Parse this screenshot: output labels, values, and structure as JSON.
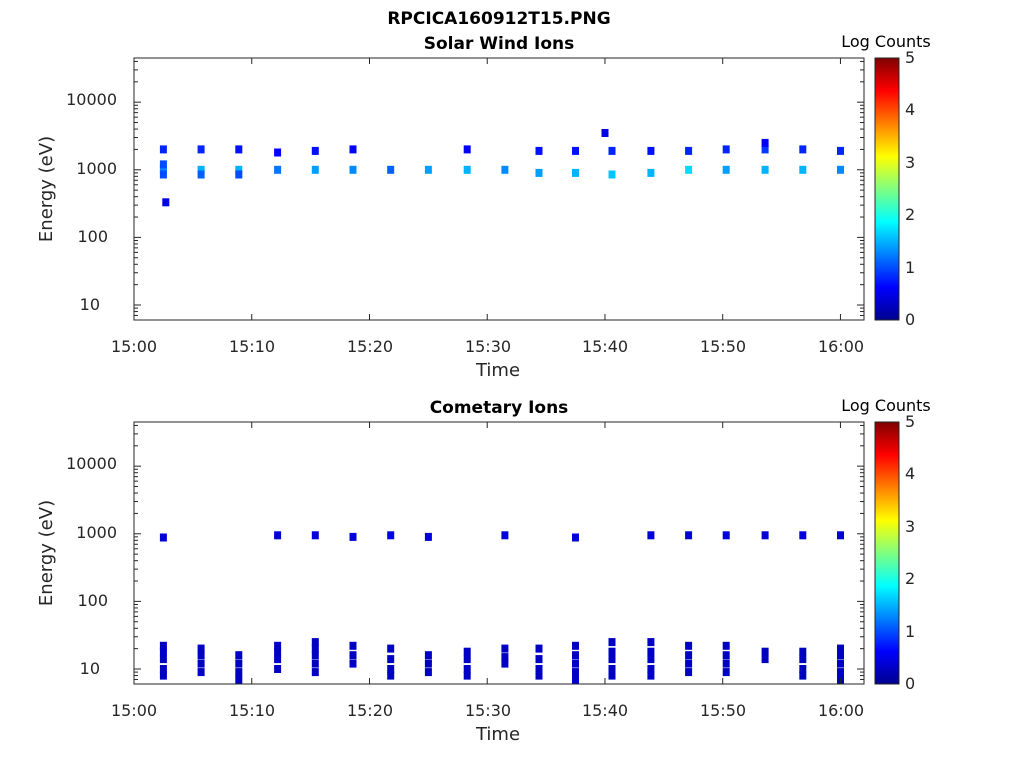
{
  "figure_title": "RPCICA160912T15.PNG",
  "chart_data": [
    {
      "type": "heatmap",
      "title": "Solar Wind Ions",
      "xlabel": "Time",
      "ylabel": "Energy (eV)",
      "x_ticks": [
        "15:00",
        "15:10",
        "15:20",
        "15:30",
        "15:40",
        "15:50",
        "16:00"
      ],
      "xlim_minutes": [
        0,
        62
      ],
      "y_scale": "log",
      "y_ticks": [
        "10",
        "100",
        "1000",
        "10000"
      ],
      "ylim": [
        6,
        45000
      ],
      "colorbar": {
        "label": "Log Counts",
        "ticks": [
          "0",
          "1",
          "2",
          "3",
          "4",
          "5"
        ],
        "range": [
          0,
          5
        ],
        "colormap": "jet"
      },
      "scans_minutes": [
        2.5,
        5.7,
        8.9,
        12.2,
        15.4,
        18.6,
        21.8,
        25.0,
        28.3,
        31.5,
        34.4,
        37.5,
        40.6,
        43.9,
        47.1,
        50.3,
        53.6,
        56.8,
        60.0
      ],
      "points": [
        {
          "t": 2.5,
          "e": 1000,
          "v": 1.3
        },
        {
          "t": 2.5,
          "e": 850,
          "v": 1.0
        },
        {
          "t": 2.5,
          "e": 1200,
          "v": 1.0
        },
        {
          "t": 2.5,
          "e": 2000,
          "v": 0.8
        },
        {
          "t": 2.7,
          "e": 330,
          "v": 0.5
        },
        {
          "t": 5.7,
          "e": 1000,
          "v": 1.5
        },
        {
          "t": 5.7,
          "e": 850,
          "v": 1.1
        },
        {
          "t": 5.7,
          "e": 2000,
          "v": 0.8
        },
        {
          "t": 8.9,
          "e": 1000,
          "v": 1.5
        },
        {
          "t": 8.9,
          "e": 850,
          "v": 1.0
        },
        {
          "t": 8.9,
          "e": 2000,
          "v": 0.7
        },
        {
          "t": 12.2,
          "e": 1000,
          "v": 1.2
        },
        {
          "t": 12.2,
          "e": 1800,
          "v": 0.6
        },
        {
          "t": 15.4,
          "e": 1000,
          "v": 1.4
        },
        {
          "t": 15.4,
          "e": 1900,
          "v": 0.7
        },
        {
          "t": 18.6,
          "e": 1000,
          "v": 1.3
        },
        {
          "t": 18.6,
          "e": 2000,
          "v": 0.6
        },
        {
          "t": 21.8,
          "e": 1000,
          "v": 1.1
        },
        {
          "t": 25.0,
          "e": 1000,
          "v": 1.4
        },
        {
          "t": 28.3,
          "e": 1000,
          "v": 1.5
        },
        {
          "t": 28.3,
          "e": 2000,
          "v": 0.6
        },
        {
          "t": 31.5,
          "e": 1000,
          "v": 1.3
        },
        {
          "t": 34.4,
          "e": 900,
          "v": 1.4
        },
        {
          "t": 34.4,
          "e": 1900,
          "v": 0.7
        },
        {
          "t": 37.5,
          "e": 900,
          "v": 1.5
        },
        {
          "t": 37.5,
          "e": 1900,
          "v": 0.7
        },
        {
          "t": 40.0,
          "e": 3500,
          "v": 0.5
        },
        {
          "t": 40.6,
          "e": 850,
          "v": 1.6
        },
        {
          "t": 40.6,
          "e": 1900,
          "v": 0.8
        },
        {
          "t": 43.9,
          "e": 900,
          "v": 1.5
        },
        {
          "t": 43.9,
          "e": 1900,
          "v": 0.7
        },
        {
          "t": 47.1,
          "e": 1000,
          "v": 1.7
        },
        {
          "t": 47.1,
          "e": 1900,
          "v": 0.8
        },
        {
          "t": 50.3,
          "e": 1000,
          "v": 1.4
        },
        {
          "t": 50.3,
          "e": 2000,
          "v": 0.8
        },
        {
          "t": 53.6,
          "e": 1000,
          "v": 1.5
        },
        {
          "t": 53.6,
          "e": 2000,
          "v": 0.9
        },
        {
          "t": 53.6,
          "e": 2500,
          "v": 0.6
        },
        {
          "t": 56.8,
          "e": 1000,
          "v": 1.5
        },
        {
          "t": 56.8,
          "e": 2000,
          "v": 0.8
        },
        {
          "t": 60.0,
          "e": 1000,
          "v": 1.3
        },
        {
          "t": 60.0,
          "e": 1900,
          "v": 0.8
        }
      ]
    },
    {
      "type": "heatmap",
      "title": "Cometary Ions",
      "xlabel": "Time",
      "ylabel": "Energy (eV)",
      "x_ticks": [
        "15:00",
        "15:10",
        "15:20",
        "15:30",
        "15:40",
        "15:50",
        "16:00"
      ],
      "xlim_minutes": [
        0,
        62
      ],
      "y_scale": "log",
      "y_ticks": [
        "10",
        "100",
        "1000",
        "10000"
      ],
      "ylim": [
        6,
        45000
      ],
      "colorbar": {
        "label": "Log Counts",
        "ticks": [
          "0",
          "1",
          "2",
          "3",
          "4",
          "5"
        ],
        "range": [
          0,
          5
        ],
        "colormap": "jet"
      },
      "points": [
        {
          "t": 2.5,
          "e": 880,
          "v": 0.4
        },
        {
          "t": 12.2,
          "e": 950,
          "v": 0.4
        },
        {
          "t": 15.4,
          "e": 950,
          "v": 0.4
        },
        {
          "t": 18.6,
          "e": 900,
          "v": 0.4
        },
        {
          "t": 21.8,
          "e": 950,
          "v": 0.5
        },
        {
          "t": 25.0,
          "e": 900,
          "v": 0.4
        },
        {
          "t": 31.5,
          "e": 950,
          "v": 0.4
        },
        {
          "t": 37.5,
          "e": 880,
          "v": 0.4
        },
        {
          "t": 43.9,
          "e": 950,
          "v": 0.4
        },
        {
          "t": 47.1,
          "e": 950,
          "v": 0.4
        },
        {
          "t": 50.3,
          "e": 950,
          "v": 0.4
        },
        {
          "t": 53.6,
          "e": 950,
          "v": 0.4
        },
        {
          "t": 56.8,
          "e": 950,
          "v": 0.4
        },
        {
          "t": 60.0,
          "e": 950,
          "v": 0.4
        },
        {
          "t": 2.5,
          "e": 22,
          "v": 0.3
        },
        {
          "t": 2.5,
          "e": 18,
          "v": 0.3
        },
        {
          "t": 2.5,
          "e": 14,
          "v": 0.3
        },
        {
          "t": 2.5,
          "e": 10,
          "v": 0.3
        },
        {
          "t": 2.5,
          "e": 8,
          "v": 0.3
        },
        {
          "t": 5.7,
          "e": 20,
          "v": 0.3
        },
        {
          "t": 5.7,
          "e": 16,
          "v": 0.3
        },
        {
          "t": 5.7,
          "e": 12,
          "v": 0.3
        },
        {
          "t": 5.7,
          "e": 9,
          "v": 0.3
        },
        {
          "t": 8.9,
          "e": 16,
          "v": 0.3
        },
        {
          "t": 8.9,
          "e": 12,
          "v": 0.3
        },
        {
          "t": 8.9,
          "e": 9,
          "v": 0.3
        },
        {
          "t": 8.9,
          "e": 7,
          "v": 0.3
        },
        {
          "t": 12.2,
          "e": 22,
          "v": 0.3
        },
        {
          "t": 12.2,
          "e": 18,
          "v": 0.3
        },
        {
          "t": 12.2,
          "e": 14,
          "v": 0.3
        },
        {
          "t": 12.2,
          "e": 10,
          "v": 0.3
        },
        {
          "t": 15.4,
          "e": 25,
          "v": 0.3
        },
        {
          "t": 15.4,
          "e": 20,
          "v": 0.3
        },
        {
          "t": 15.4,
          "e": 16,
          "v": 0.3
        },
        {
          "t": 15.4,
          "e": 12,
          "v": 0.3
        },
        {
          "t": 15.4,
          "e": 9,
          "v": 0.3
        },
        {
          "t": 18.6,
          "e": 22,
          "v": 0.3
        },
        {
          "t": 18.6,
          "e": 16,
          "v": 0.3
        },
        {
          "t": 18.6,
          "e": 12,
          "v": 0.3
        },
        {
          "t": 21.8,
          "e": 20,
          "v": 0.3
        },
        {
          "t": 21.8,
          "e": 14,
          "v": 0.3
        },
        {
          "t": 21.8,
          "e": 10,
          "v": 0.3
        },
        {
          "t": 21.8,
          "e": 8,
          "v": 0.3
        },
        {
          "t": 25.0,
          "e": 16,
          "v": 0.3
        },
        {
          "t": 25.0,
          "e": 12,
          "v": 0.3
        },
        {
          "t": 25.0,
          "e": 9,
          "v": 0.3
        },
        {
          "t": 28.3,
          "e": 18,
          "v": 0.3
        },
        {
          "t": 28.3,
          "e": 14,
          "v": 0.3
        },
        {
          "t": 28.3,
          "e": 10,
          "v": 0.3
        },
        {
          "t": 28.3,
          "e": 8,
          "v": 0.3
        },
        {
          "t": 31.5,
          "e": 20,
          "v": 0.3
        },
        {
          "t": 31.5,
          "e": 15,
          "v": 0.3
        },
        {
          "t": 31.5,
          "e": 12,
          "v": 0.3
        },
        {
          "t": 34.4,
          "e": 20,
          "v": 0.3
        },
        {
          "t": 34.4,
          "e": 14,
          "v": 0.3
        },
        {
          "t": 34.4,
          "e": 10,
          "v": 0.3
        },
        {
          "t": 34.4,
          "e": 8,
          "v": 0.3
        },
        {
          "t": 37.5,
          "e": 22,
          "v": 0.3
        },
        {
          "t": 37.5,
          "e": 16,
          "v": 0.3
        },
        {
          "t": 37.5,
          "e": 12,
          "v": 0.3
        },
        {
          "t": 37.5,
          "e": 9,
          "v": 0.3
        },
        {
          "t": 37.5,
          "e": 7,
          "v": 0.3
        },
        {
          "t": 40.6,
          "e": 25,
          "v": 0.3
        },
        {
          "t": 40.6,
          "e": 18,
          "v": 0.3
        },
        {
          "t": 40.6,
          "e": 14,
          "v": 0.3
        },
        {
          "t": 40.6,
          "e": 10,
          "v": 0.3
        },
        {
          "t": 40.6,
          "e": 8,
          "v": 0.3
        },
        {
          "t": 43.9,
          "e": 25,
          "v": 0.3
        },
        {
          "t": 43.9,
          "e": 18,
          "v": 0.3
        },
        {
          "t": 43.9,
          "e": 14,
          "v": 0.3
        },
        {
          "t": 43.9,
          "e": 10,
          "v": 0.3
        },
        {
          "t": 43.9,
          "e": 8,
          "v": 0.3
        },
        {
          "t": 47.1,
          "e": 22,
          "v": 0.3
        },
        {
          "t": 47.1,
          "e": 16,
          "v": 0.3
        },
        {
          "t": 47.1,
          "e": 12,
          "v": 0.3
        },
        {
          "t": 47.1,
          "e": 9,
          "v": 0.3
        },
        {
          "t": 50.3,
          "e": 22,
          "v": 0.3
        },
        {
          "t": 50.3,
          "e": 16,
          "v": 0.3
        },
        {
          "t": 50.3,
          "e": 12,
          "v": 0.3
        },
        {
          "t": 50.3,
          "e": 9,
          "v": 0.3
        },
        {
          "t": 53.6,
          "e": 18,
          "v": 0.3
        },
        {
          "t": 53.6,
          "e": 14,
          "v": 0.3
        },
        {
          "t": 56.8,
          "e": 18,
          "v": 0.3
        },
        {
          "t": 56.8,
          "e": 14,
          "v": 0.3
        },
        {
          "t": 56.8,
          "e": 10,
          "v": 0.3
        },
        {
          "t": 56.8,
          "e": 8,
          "v": 0.3
        },
        {
          "t": 60.0,
          "e": 20,
          "v": 0.3
        },
        {
          "t": 60.0,
          "e": 16,
          "v": 0.3
        },
        {
          "t": 60.0,
          "e": 12,
          "v": 0.3
        },
        {
          "t": 60.0,
          "e": 9,
          "v": 0.3
        },
        {
          "t": 60.0,
          "e": 7,
          "v": 0.3
        }
      ]
    }
  ]
}
